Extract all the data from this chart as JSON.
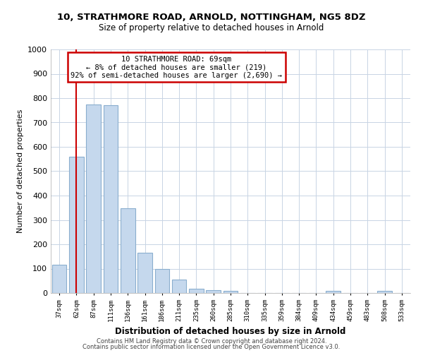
{
  "title_line1": "10, STRATHMORE ROAD, ARNOLD, NOTTINGHAM, NG5 8DZ",
  "title_line2": "Size of property relative to detached houses in Arnold",
  "xlabel": "Distribution of detached houses by size in Arnold",
  "ylabel": "Number of detached properties",
  "bar_labels": [
    "37sqm",
    "62sqm",
    "87sqm",
    "111sqm",
    "136sqm",
    "161sqm",
    "186sqm",
    "211sqm",
    "235sqm",
    "260sqm",
    "285sqm",
    "310sqm",
    "335sqm",
    "359sqm",
    "384sqm",
    "409sqm",
    "434sqm",
    "459sqm",
    "483sqm",
    "508sqm",
    "533sqm"
  ],
  "bar_values": [
    115,
    560,
    775,
    770,
    348,
    165,
    98,
    55,
    18,
    12,
    10,
    0,
    0,
    0,
    0,
    0,
    10,
    0,
    0,
    10,
    0
  ],
  "bar_color": "#c5d8ed",
  "bar_edge_color": "#8aaece",
  "vline_x": 1,
  "vline_color": "#cc0000",
  "ylim": [
    0,
    1000
  ],
  "yticks": [
    0,
    100,
    200,
    300,
    400,
    500,
    600,
    700,
    800,
    900,
    1000
  ],
  "annotation_line1": "10 STRATHMORE ROAD: 69sqm",
  "annotation_line2": "← 8% of detached houses are smaller (219)",
  "annotation_line3": "92% of semi-detached houses are larger (2,690) →",
  "footer_line1": "Contains HM Land Registry data © Crown copyright and database right 2024.",
  "footer_line2": "Contains public sector information licensed under the Open Government Licence v3.0.",
  "box_color": "#cc0000",
  "bg_color": "#ffffff",
  "grid_color": "#c8d4e4"
}
